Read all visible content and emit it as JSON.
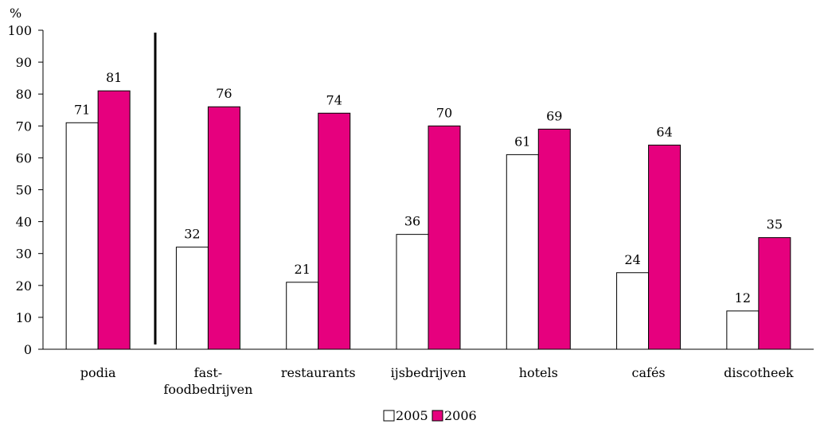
{
  "chart_data": {
    "type": "bar",
    "ylabel": "%",
    "ylim": [
      0,
      100
    ],
    "yticks": [
      0,
      10,
      20,
      30,
      40,
      50,
      60,
      70,
      80,
      90,
      100
    ],
    "categories": [
      "podia",
      "fast-\nfoodbedrijven",
      "restaurants",
      "ijsbedrijven",
      "hotels",
      "cafés",
      "discotheek"
    ],
    "series": [
      {
        "name": "2005",
        "color": "#ffffff",
        "values": [
          71,
          32,
          21,
          36,
          61,
          24,
          12
        ]
      },
      {
        "name": "2006",
        "color": "#e6007e",
        "values": [
          81,
          76,
          74,
          70,
          69,
          64,
          35
        ]
      }
    ],
    "legend_position": "bottom",
    "grid": false
  }
}
